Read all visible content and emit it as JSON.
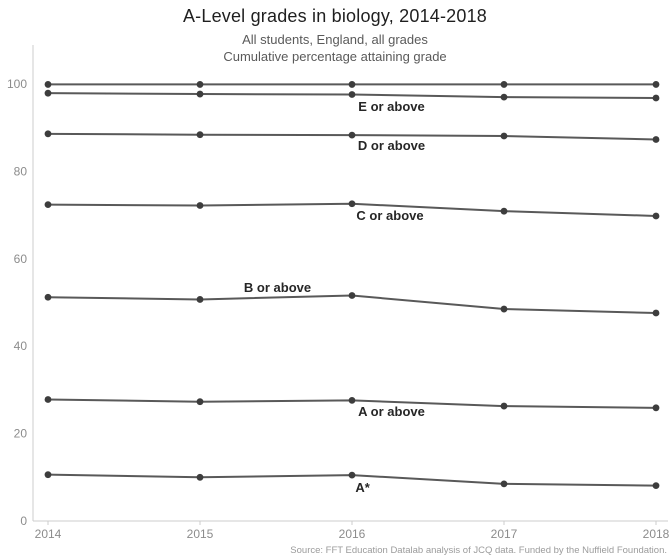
{
  "title": "A-Level grades in biology, 2014-2018",
  "subtitle1": "All students, England, all grades",
  "subtitle2": "Cumulative percentage attaining grade",
  "source": "Source: FFT Education Datalab analysis of JCQ data. Funded by the Nuffield Foundation.",
  "colors": {
    "line": "#595959",
    "marker": "#3d3d3d",
    "axis": "#cccccc",
    "tick_text": "#8c8c8c",
    "label_text": "#262626"
  },
  "chart_data": {
    "type": "line",
    "x": [
      2014,
      2015,
      2016,
      2017,
      2018
    ],
    "xlabel": "",
    "ylabel": "",
    "ylim": [
      0,
      100
    ],
    "yticks": [
      0,
      20,
      40,
      60,
      80,
      100
    ],
    "grid": false,
    "legend_position": "inline-labels",
    "series": [
      {
        "name": "",
        "values": [
          99.9,
          99.9,
          99.9,
          99.9,
          99.9
        ]
      },
      {
        "name": "E or above",
        "values": [
          97.9,
          97.7,
          97.6,
          97.0,
          96.8
        ],
        "label": {
          "x": 2016.26,
          "y": 93.8
        }
      },
      {
        "name": "D or above",
        "values": [
          88.6,
          88.4,
          88.3,
          88.1,
          87.3
        ],
        "label": {
          "x": 2016.26,
          "y": 84.9
        }
      },
      {
        "name": "C or above",
        "values": [
          72.4,
          72.2,
          72.6,
          70.9,
          69.8
        ],
        "label": {
          "x": 2016.25,
          "y": 68.9
        }
      },
      {
        "name": "B or above",
        "values": [
          51.2,
          50.7,
          51.6,
          48.5,
          47.6
        ],
        "label": {
          "x": 2015.51,
          "y": 52.4
        }
      },
      {
        "name": "A or above",
        "values": [
          27.8,
          27.3,
          27.6,
          26.3,
          25.9
        ],
        "label": {
          "x": 2016.26,
          "y": 24.0
        }
      },
      {
        "name": "A*",
        "values": [
          10.6,
          10.0,
          10.5,
          8.5,
          8.1
        ],
        "label": {
          "x": 2016.07,
          "y": 6.6
        }
      }
    ]
  }
}
